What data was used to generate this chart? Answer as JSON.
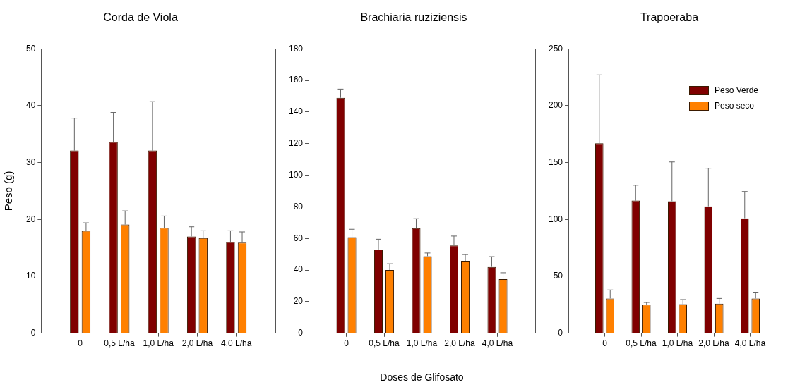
{
  "chart_data": [
    {
      "type": "bar",
      "title": "Corda de Viola",
      "ylabel": "Peso (g)",
      "categories": [
        "0",
        "0,5 L/ha",
        "1,0 L/ha",
        "2,0 L/ha",
        "4,0 L/ha"
      ],
      "ylim": [
        0,
        50
      ],
      "yticks": [
        0,
        10,
        20,
        30,
        40,
        50
      ],
      "series": [
        {
          "color": "#800000",
          "values": [
            32.1,
            33.6,
            32.1,
            17,
            16
          ],
          "errors": [
            [
              32.1,
              37.8
            ],
            [
              33.6,
              38.8
            ],
            [
              32.1,
              40.7
            ],
            [
              17,
              18.7
            ],
            [
              16,
              18.0
            ]
          ]
        },
        {
          "color": "#ff8000",
          "values": [
            18,
            19.1,
            18.5,
            16.7,
            15.9
          ],
          "errors": [
            [
              18,
              19.4
            ],
            [
              19.1,
              21.5
            ],
            [
              18.5,
              20.6
            ],
            [
              16.7,
              18.0
            ],
            [
              15.9,
              17.8
            ]
          ]
        }
      ]
    },
    {
      "type": "bar",
      "title": "Brachiaria ruziziensis",
      "xlabel": "Doses de Glifosato",
      "categories": [
        "0",
        "0,5 L/ha",
        "1,0 L/ha",
        "2,0 L/ha",
        "4,0 L/ha"
      ],
      "ylim": [
        0,
        180
      ],
      "yticks": [
        0,
        20,
        40,
        60,
        80,
        100,
        120,
        140,
        160,
        180
      ],
      "series": [
        {
          "color": "#800000",
          "values": [
            149,
            53,
            66.5,
            55.5,
            42
          ],
          "errors": [
            [
              149,
              154.5
            ],
            [
              53,
              59.5
            ],
            [
              66.5,
              72.5
            ],
            [
              55.5,
              61.5
            ],
            [
              42,
              48.5
            ]
          ]
        },
        {
          "color": "#ff8000",
          "values": [
            60.8,
            40,
            48.8,
            45.8,
            34.3
          ],
          "errors": [
            [
              60.8,
              65.8
            ],
            [
              40,
              44
            ],
            [
              48.8,
              50.8
            ],
            [
              45.8,
              49.8
            ],
            [
              34.3,
              38.3
            ]
          ]
        }
      ]
    },
    {
      "type": "bar",
      "title": "Trapoeraba",
      "categories": [
        "0",
        "0,5 L/ha",
        "1,0 L/ha",
        "2,0 L/ha",
        "4,0 L/ha"
      ],
      "ylim": [
        0,
        250
      ],
      "yticks": [
        0,
        50,
        100,
        150,
        200,
        250
      ],
      "legend": "top right",
      "series": [
        {
          "name": "Peso Verde",
          "color": "#800000",
          "values": [
            167,
            116.5,
            116,
            111.5,
            101
          ],
          "errors": [
            [
              167,
              227
            ],
            [
              116.5,
              130
            ],
            [
              116,
              150.5
            ],
            [
              111.5,
              145
            ],
            [
              101,
              124.5
            ]
          ]
        },
        {
          "name": "Peso seco",
          "color": "#ff8000",
          "values": [
            30.5,
            25,
            25.5,
            26,
            30.5
          ],
          "errors": [
            [
              30.5,
              38
            ],
            [
              25,
              27
            ],
            [
              25.5,
              29.5
            ],
            [
              26,
              30.5
            ],
            [
              30.5,
              36
            ]
          ]
        }
      ]
    }
  ]
}
